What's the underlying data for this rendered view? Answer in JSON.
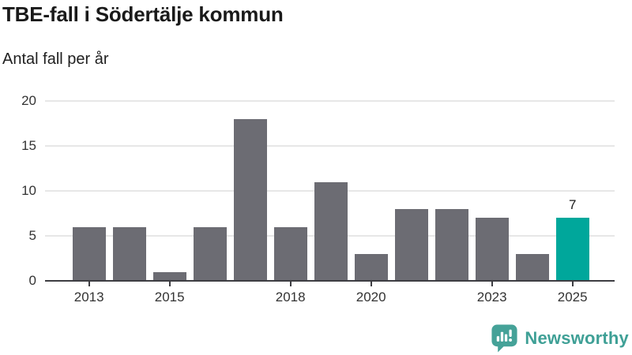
{
  "header": {
    "title": "TBE-fall i Södertälje kommun",
    "subtitle": "Antal fall per år"
  },
  "chart_data": {
    "type": "bar",
    "title": "TBE-fall i Södertälje kommun",
    "subtitle": "Antal fall per år",
    "categories": [
      "2013",
      "2014",
      "2015",
      "2016",
      "2017",
      "2018",
      "2019",
      "2020",
      "2021",
      "2022",
      "2023",
      "2024",
      "2025"
    ],
    "values": [
      6,
      6,
      1,
      6,
      18,
      6,
      11,
      3,
      8,
      8,
      7,
      3,
      7
    ],
    "ylim": [
      0,
      20
    ],
    "yticks": [
      0,
      5,
      10,
      15,
      20
    ],
    "xtick_labels": [
      "2013",
      "2015",
      "2018",
      "2020",
      "2023",
      "2025"
    ],
    "xtick_indices": [
      0,
      2,
      5,
      7,
      10,
      12
    ],
    "grid": "horizontal",
    "legend": "none",
    "highlight_index": 12,
    "value_labels": [
      {
        "index": 12,
        "text": "7"
      }
    ]
  },
  "colors": {
    "bar": "#6C6C73",
    "highlight_bar": "#00A79B",
    "axis": "#3D3D42",
    "gridline": "#E7E7E7",
    "title_text": "#1A1A1A",
    "tick_text": "#333333",
    "brand_text": "#3FA096",
    "brand_icon": "#45A298"
  },
  "branding": {
    "name": "Newsworthy",
    "logo_icon": "newsworthy-bar-chart-bubble-icon"
  }
}
